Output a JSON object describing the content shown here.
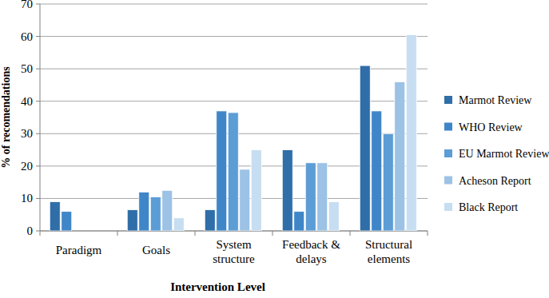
{
  "chart_data": {
    "type": "bar",
    "x_label": "Intervention Level",
    "y_label": "% of recomendations",
    "categories": [
      "Paradigm",
      "Goals",
      "System structure",
      "Feedback & delays",
      "Structural elements"
    ],
    "series": [
      {
        "name": "Marmot Review",
        "color": "#2f6ea8",
        "values": [
          9,
          6.5,
          6.5,
          25,
          51
        ]
      },
      {
        "name": "WHO Review",
        "color": "#3f86c8",
        "values": [
          6,
          12,
          37,
          6,
          37
        ]
      },
      {
        "name": "EU Marmot Review",
        "color": "#5c9dd6",
        "values": [
          0,
          10.5,
          36.5,
          21,
          30
        ]
      },
      {
        "name": "Acheson Report",
        "color": "#9cc2e5",
        "values": [
          0,
          12.5,
          19,
          21,
          46
        ]
      },
      {
        "name": "Black Report",
        "color": "#c7ddf1",
        "values": [
          0,
          4,
          25,
          9,
          60.5
        ]
      }
    ],
    "ylim": [
      0,
      70
    ],
    "yticks": [
      0,
      10,
      20,
      30,
      40,
      50,
      60,
      70
    ],
    "grid": true,
    "legend": "right"
  }
}
